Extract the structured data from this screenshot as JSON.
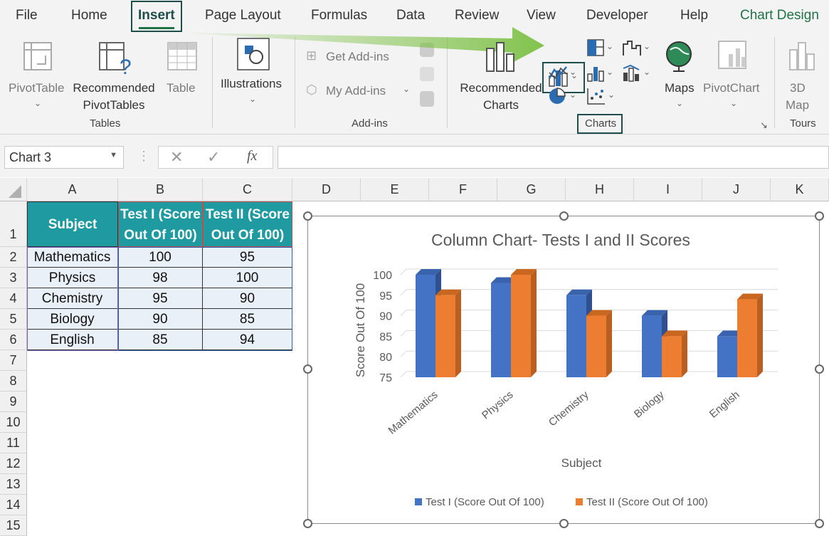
{
  "menu": {
    "file": "File",
    "home": "Home",
    "insert": "Insert",
    "page_layout": "Page Layout",
    "formulas": "Formulas",
    "data": "Data",
    "review": "Review",
    "view": "View",
    "developer": "Developer",
    "help": "Help",
    "chart_design": "Chart Design"
  },
  "ribbon": {
    "pivot_table": "PivotTable",
    "recommended_pivot_1": "Recommended",
    "recommended_pivot_2": "PivotTables",
    "table": "Table",
    "group_tables": "Tables",
    "illustrations": "Illustrations",
    "get_addins": "Get Add-ins",
    "my_addins": "My Add-ins",
    "group_addins": "Add-ins",
    "recommended_charts_1": "Recommended",
    "recommended_charts_2": "Charts",
    "group_charts": "Charts",
    "maps": "Maps",
    "pivot_chart": "PivotChart",
    "map3d_1": "3D",
    "map3d_2": "Map",
    "group_tours": "Tours"
  },
  "formula_bar": {
    "name_box": "Chart 3",
    "fx": "fx"
  },
  "columns": [
    "A",
    "B",
    "C",
    "D",
    "E",
    "F",
    "G",
    "H",
    "I",
    "J",
    "K"
  ],
  "rows": [
    "1",
    "2",
    "3",
    "4",
    "5",
    "6",
    "7",
    "8",
    "9",
    "10",
    "11",
    "12",
    "13",
    "14",
    "15"
  ],
  "table": {
    "headers": [
      "Subject",
      "Test I (Score Out Of 100)",
      "Test II (Score Out Of 100)"
    ],
    "header_b_1": "Test I (Score",
    "header_b_2": "Out Of 100)",
    "header_c_1": "Test II (Score",
    "header_c_2": "Out Of 100)",
    "rows": [
      [
        "Mathematics",
        "100",
        "95"
      ],
      [
        "Physics",
        "98",
        "100"
      ],
      [
        "Chemistry",
        "95",
        "90"
      ],
      [
        "Biology",
        "90",
        "85"
      ],
      [
        "English",
        "85",
        "94"
      ]
    ]
  },
  "colors": {
    "accent": "#217346",
    "header_fill": "#1f9aa0",
    "series1": "#4472c4",
    "series2": "#ed7d31",
    "highlight_border": "#1e4d4a"
  },
  "chart_data": {
    "type": "bar",
    "title": "Column Chart- Tests I and II Scores",
    "xlabel": "Subject",
    "ylabel": "Score Out Of 100",
    "categories": [
      "Mathematics",
      "Physics",
      "Chemistry",
      "Biology",
      "English"
    ],
    "series": [
      {
        "name": "Test I (Score Out Of 100)",
        "values": [
          100,
          98,
          95,
          90,
          85
        ]
      },
      {
        "name": "Test II (Score Out Of 100)",
        "values": [
          95,
          100,
          90,
          85,
          94
        ]
      }
    ],
    "ylim": [
      75,
      100
    ],
    "yticks": [
      "75",
      "80",
      "85",
      "90",
      "95",
      "100"
    ],
    "grid": true,
    "legend": "bottom",
    "style": "3d-clustered-column"
  }
}
